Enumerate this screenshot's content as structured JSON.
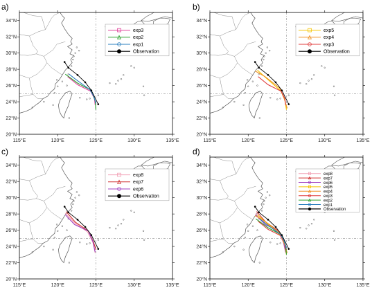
{
  "figure": {
    "panels": [
      {
        "letter": "a)",
        "legend": [
          {
            "label": "exp3",
            "color": "#e0409a",
            "marker": "square"
          },
          {
            "label": "exp2",
            "color": "#2ca02c",
            "marker": "triangle"
          },
          {
            "label": "exp1",
            "color": "#2a7fbf",
            "marker": "circle"
          },
          {
            "label": "Observation",
            "color": "#000000",
            "marker": "dot"
          }
        ],
        "tracks": [
          {
            "name": "exp3",
            "color": "#e0409a",
            "points": [
              [
                124.9,
                23.6
              ],
              [
                124.8,
                24.4
              ],
              [
                124.3,
                25.3
              ],
              [
                122.6,
                26.1
              ],
              [
                121.3,
                27.1
              ]
            ]
          },
          {
            "name": "exp2",
            "color": "#2ca02c",
            "points": [
              [
                125.0,
                23.0
              ],
              [
                124.9,
                24.1
              ],
              [
                124.4,
                25.4
              ],
              [
                122.6,
                26.3
              ],
              [
                121.0,
                27.4
              ]
            ]
          },
          {
            "name": "exp1",
            "color": "#2a7fbf",
            "points": [
              [
                125.0,
                23.8
              ],
              [
                124.7,
                24.7
              ],
              [
                124.2,
                25.5
              ],
              [
                122.3,
                26.8
              ],
              [
                121.5,
                27.4
              ]
            ]
          },
          {
            "name": "Observation",
            "color": "#000000",
            "points": [
              [
                125.3,
                23.7
              ],
              [
                124.4,
                25.4
              ],
              [
                123.6,
                26.4
              ],
              [
                122.6,
                27.3
              ],
              [
                121.4,
                28.2
              ],
              [
                120.9,
                28.9
              ]
            ]
          }
        ]
      },
      {
        "letter": "b)",
        "legend": [
          {
            "label": "exp5",
            "color": "#f5c400",
            "marker": "square"
          },
          {
            "label": "exp4",
            "color": "#f09020",
            "marker": "triangle"
          },
          {
            "label": "exp3",
            "color": "#e03c3c",
            "marker": "circle"
          },
          {
            "label": "Observation",
            "color": "#000000",
            "marker": "dot"
          }
        ],
        "tracks": [
          {
            "name": "exp5",
            "color": "#f5c400",
            "points": [
              [
                125.0,
                23.0
              ],
              [
                124.8,
                24.2
              ],
              [
                124.3,
                25.3
              ],
              [
                122.5,
                26.8
              ],
              [
                121.2,
                27.9
              ]
            ]
          },
          {
            "name": "exp4",
            "color": "#f09020",
            "points": [
              [
                125.1,
                23.2
              ],
              [
                124.7,
                24.4
              ],
              [
                124.1,
                25.7
              ],
              [
                122.2,
                27.1
              ],
              [
                120.9,
                27.8
              ]
            ]
          },
          {
            "name": "exp3",
            "color": "#e03c3c",
            "points": [
              [
                124.9,
                23.6
              ],
              [
                124.8,
                24.4
              ],
              [
                124.3,
                25.3
              ],
              [
                122.6,
                26.1
              ],
              [
                121.3,
                27.1
              ]
            ]
          },
          {
            "name": "Observation",
            "color": "#000000",
            "points": [
              [
                125.3,
                23.7
              ],
              [
                124.4,
                25.4
              ],
              [
                123.6,
                26.4
              ],
              [
                122.6,
                27.3
              ],
              [
                121.4,
                28.2
              ],
              [
                120.9,
                28.9
              ]
            ]
          }
        ]
      },
      {
        "letter": "c)",
        "legend": [
          {
            "label": "exp8",
            "color": "#f2a0b4",
            "marker": "square"
          },
          {
            "label": "exp7",
            "color": "#d03030",
            "marker": "triangle"
          },
          {
            "label": "exp6",
            "color": "#a040c0",
            "marker": "circle"
          },
          {
            "label": "Observation",
            "color": "#000000",
            "marker": "dot"
          }
        ],
        "tracks": [
          {
            "name": "exp8",
            "color": "#f2a0b4",
            "points": [
              [
                124.9,
                23.2
              ],
              [
                124.6,
                24.5
              ],
              [
                123.9,
                25.8
              ],
              [
                122.2,
                26.9
              ],
              [
                121.0,
                28.1
              ]
            ]
          },
          {
            "name": "exp7",
            "color": "#d03030",
            "points": [
              [
                125.0,
                23.6
              ],
              [
                124.7,
                24.5
              ],
              [
                124.0,
                25.9
              ],
              [
                122.3,
                27.0
              ],
              [
                121.1,
                28.3
              ]
            ]
          },
          {
            "name": "exp6",
            "color": "#a040c0",
            "points": [
              [
                124.9,
                23.3
              ],
              [
                124.6,
                24.6
              ],
              [
                124.0,
                25.9
              ],
              [
                122.2,
                26.7
              ],
              [
                121.0,
                27.9
              ]
            ]
          },
          {
            "name": "Observation",
            "color": "#000000",
            "points": [
              [
                125.3,
                23.7
              ],
              [
                124.4,
                25.4
              ],
              [
                123.6,
                26.4
              ],
              [
                122.6,
                27.3
              ],
              [
                121.4,
                28.2
              ],
              [
                120.9,
                28.9
              ]
            ]
          }
        ]
      },
      {
        "letter": "d)",
        "legend": [
          {
            "label": "exp8",
            "color": "#f2a0b4",
            "marker": "square"
          },
          {
            "label": "exp7",
            "color": "#d03030",
            "marker": "triangle"
          },
          {
            "label": "exp6",
            "color": "#a040c0",
            "marker": "circle"
          },
          {
            "label": "exp5",
            "color": "#f5c400",
            "marker": "square"
          },
          {
            "label": "exp4",
            "color": "#f09020",
            "marker": "triangle"
          },
          {
            "label": "exp3",
            "color": "#e03c3c",
            "marker": "circle"
          },
          {
            "label": "exp2",
            "color": "#2ca02c",
            "marker": "triangle"
          },
          {
            "label": "exp1",
            "color": "#2a7fbf",
            "marker": "circle"
          },
          {
            "label": "Observation",
            "color": "#000000",
            "marker": "dot"
          }
        ],
        "tracks": [
          {
            "name": "exp8",
            "color": "#f2a0b4",
            "points": [
              [
                124.9,
                23.2
              ],
              [
                124.6,
                24.5
              ],
              [
                123.9,
                25.8
              ],
              [
                122.2,
                26.9
              ],
              [
                121.0,
                28.1
              ]
            ]
          },
          {
            "name": "exp7",
            "color": "#d03030",
            "points": [
              [
                125.0,
                23.6
              ],
              [
                124.7,
                24.5
              ],
              [
                124.0,
                25.9
              ],
              [
                122.3,
                27.0
              ],
              [
                121.1,
                28.3
              ]
            ]
          },
          {
            "name": "exp6",
            "color": "#a040c0",
            "points": [
              [
                124.9,
                23.3
              ],
              [
                124.6,
                24.6
              ],
              [
                124.0,
                25.9
              ],
              [
                122.2,
                26.7
              ],
              [
                121.0,
                27.9
              ]
            ]
          },
          {
            "name": "exp5",
            "color": "#f5c400",
            "points": [
              [
                125.0,
                23.0
              ],
              [
                124.8,
                24.2
              ],
              [
                124.3,
                25.3
              ],
              [
                122.5,
                26.8
              ],
              [
                121.2,
                27.9
              ]
            ]
          },
          {
            "name": "exp4",
            "color": "#f09020",
            "points": [
              [
                125.1,
                23.2
              ],
              [
                124.7,
                24.4
              ],
              [
                124.1,
                25.7
              ],
              [
                122.2,
                27.1
              ],
              [
                120.9,
                27.8
              ]
            ]
          },
          {
            "name": "exp3",
            "color": "#e03c3c",
            "points": [
              [
                124.9,
                23.6
              ],
              [
                124.8,
                24.4
              ],
              [
                124.3,
                25.3
              ],
              [
                122.6,
                26.1
              ],
              [
                121.3,
                27.1
              ]
            ]
          },
          {
            "name": "exp2",
            "color": "#2ca02c",
            "points": [
              [
                125.0,
                23.0
              ],
              [
                124.9,
                24.1
              ],
              [
                124.4,
                25.4
              ],
              [
                122.6,
                26.3
              ],
              [
                121.0,
                27.4
              ]
            ]
          },
          {
            "name": "exp1",
            "color": "#2a7fbf",
            "points": [
              [
                125.0,
                23.8
              ],
              [
                124.7,
                24.7
              ],
              [
                124.2,
                25.5
              ],
              [
                122.3,
                26.8
              ],
              [
                121.5,
                27.4
              ]
            ]
          },
          {
            "name": "Observation",
            "color": "#000000",
            "points": [
              [
                125.3,
                23.7
              ],
              [
                124.4,
                25.4
              ],
              [
                123.6,
                26.4
              ],
              [
                122.6,
                27.3
              ],
              [
                121.4,
                28.2
              ],
              [
                120.9,
                28.9
              ]
            ]
          }
        ]
      }
    ],
    "x_tick_labels": [
      "115°E",
      "120°E",
      "125°E",
      "130°E",
      "135°E"
    ],
    "y_tick_labels": [
      "20°N",
      "22°N",
      "24°N",
      "26°N",
      "28°N",
      "30°N",
      "32°N",
      "34°N"
    ]
  },
  "chart_data": {
    "type": "line",
    "x_range_deg_E": [
      115,
      135
    ],
    "y_range_deg_N": [
      20,
      35
    ],
    "reference_lines": {
      "lon": 125,
      "lat": 25
    }
  },
  "colors": {
    "coast": "#555555",
    "border": "#000000",
    "grid": "#888888"
  }
}
